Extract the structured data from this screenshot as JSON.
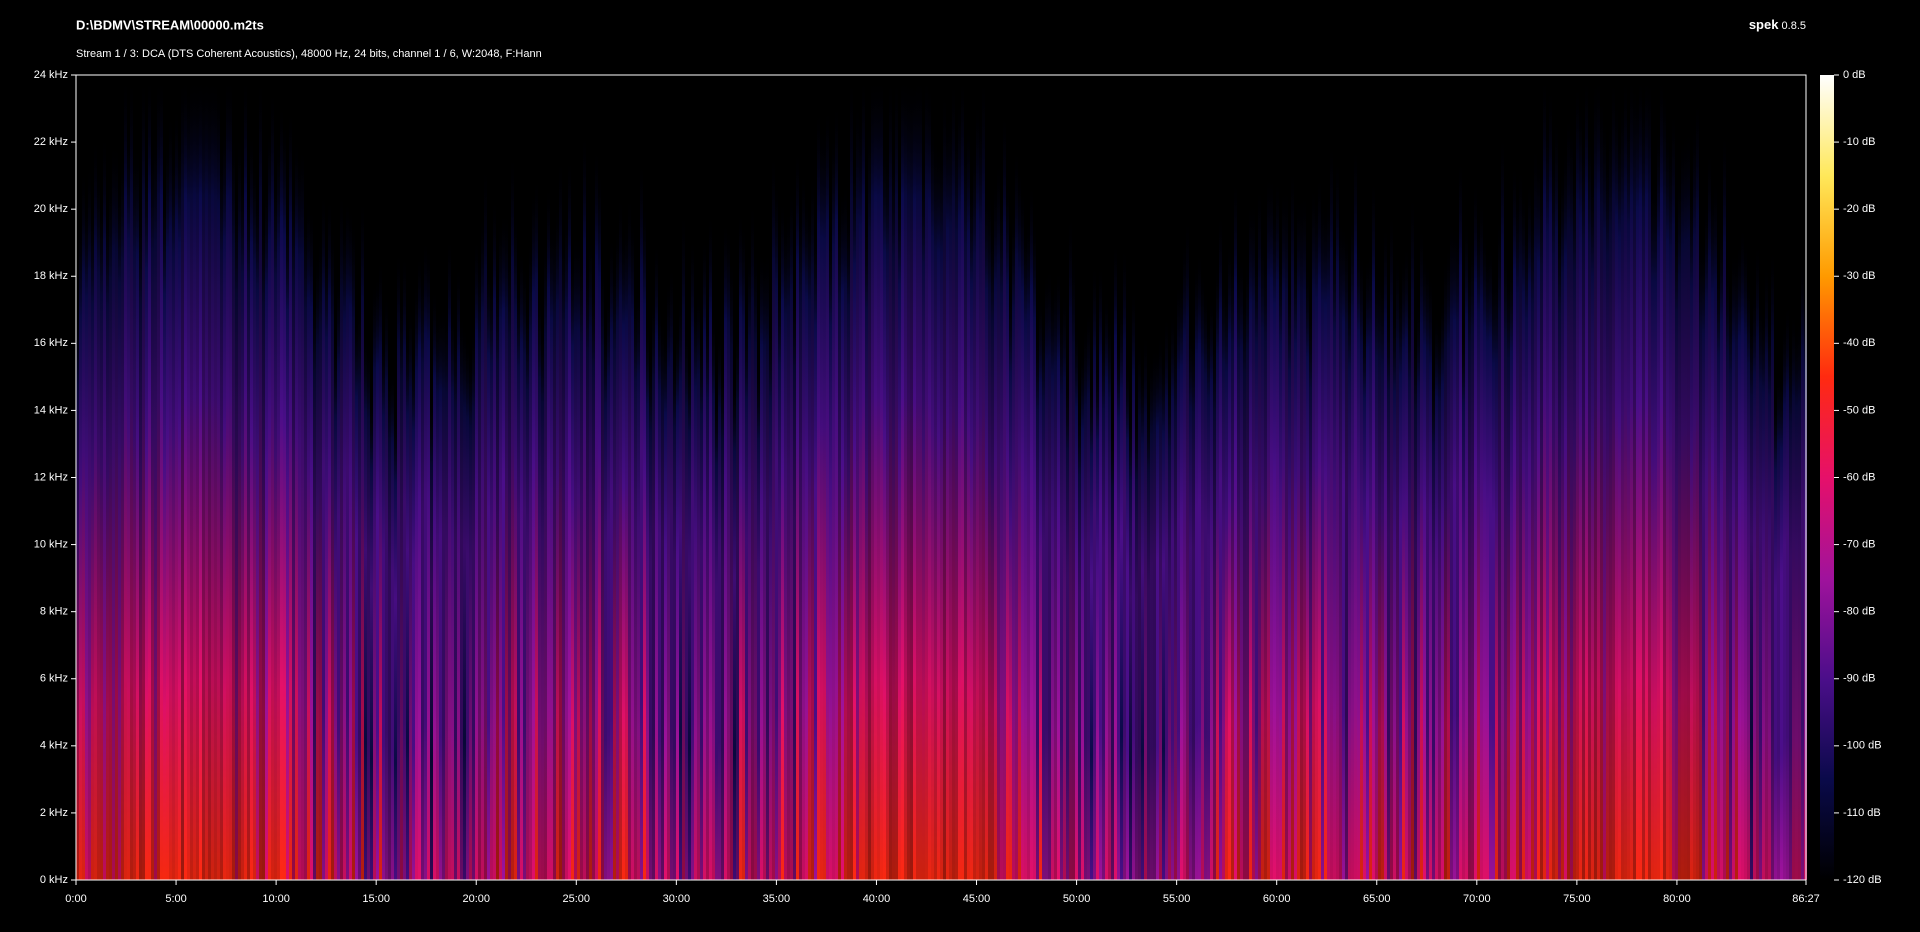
{
  "chart_data": {
    "type": "spectrogram",
    "title": "D:\\BDMV\\STREAM\\00000.m2ts",
    "subtitle": "Stream 1 / 3: DCA (DTS Coherent Acoustics), 48000 Hz, 24 bits, channel 1 / 6, W:2048, F:Hann",
    "app_name": "spek",
    "app_version": "0.8.5",
    "xlim": [
      0,
      86.45
    ],
    "xticks": [
      {
        "value": 0,
        "label": "0:00"
      },
      {
        "value": 5,
        "label": "5:00"
      },
      {
        "value": 10,
        "label": "10:00"
      },
      {
        "value": 15,
        "label": "15:00"
      },
      {
        "value": 20,
        "label": "20:00"
      },
      {
        "value": 25,
        "label": "25:00"
      },
      {
        "value": 30,
        "label": "30:00"
      },
      {
        "value": 35,
        "label": "35:00"
      },
      {
        "value": 40,
        "label": "40:00"
      },
      {
        "value": 45,
        "label": "45:00"
      },
      {
        "value": 50,
        "label": "50:00"
      },
      {
        "value": 55,
        "label": "55:00"
      },
      {
        "value": 60,
        "label": "60:00"
      },
      {
        "value": 65,
        "label": "65:00"
      },
      {
        "value": 70,
        "label": "70:00"
      },
      {
        "value": 75,
        "label": "75:00"
      },
      {
        "value": 80,
        "label": "80:00"
      },
      {
        "value": 86.45,
        "label": "86:27"
      }
    ],
    "ylim": [
      0,
      24
    ],
    "yticks": [
      {
        "value": 0,
        "label": "0 kHz"
      },
      {
        "value": 2,
        "label": "2 kHz"
      },
      {
        "value": 4,
        "label": "4 kHz"
      },
      {
        "value": 6,
        "label": "6 kHz"
      },
      {
        "value": 8,
        "label": "8 kHz"
      },
      {
        "value": 10,
        "label": "10 kHz"
      },
      {
        "value": 12,
        "label": "12 kHz"
      },
      {
        "value": 14,
        "label": "14 kHz"
      },
      {
        "value": 16,
        "label": "16 kHz"
      },
      {
        "value": 18,
        "label": "18 kHz"
      },
      {
        "value": 20,
        "label": "20 kHz"
      },
      {
        "value": 22,
        "label": "22 kHz"
      },
      {
        "value": 24,
        "label": "24 kHz"
      }
    ],
    "zlim": [
      -120,
      0
    ],
    "zticks": [
      {
        "value": 0,
        "label": "0 dB"
      },
      {
        "value": -10,
        "label": "-10 dB"
      },
      {
        "value": -20,
        "label": "-20 dB"
      },
      {
        "value": -30,
        "label": "-30 dB"
      },
      {
        "value": -40,
        "label": "-40 dB"
      },
      {
        "value": -50,
        "label": "-50 dB"
      },
      {
        "value": -60,
        "label": "-60 dB"
      },
      {
        "value": -70,
        "label": "-70 dB"
      },
      {
        "value": -80,
        "label": "-80 dB"
      },
      {
        "value": -90,
        "label": "-90 dB"
      },
      {
        "value": -100,
        "label": "-100 dB"
      },
      {
        "value": -110,
        "label": "-110 dB"
      },
      {
        "value": -120,
        "label": "-120 dB"
      }
    ],
    "colormap": [
      "#000000",
      "#0a0a4a",
      "#4b0e8a",
      "#a0129c",
      "#e6106a",
      "#ff2a10",
      "#ff9a00",
      "#ffe85a",
      "#ffffff"
    ]
  }
}
